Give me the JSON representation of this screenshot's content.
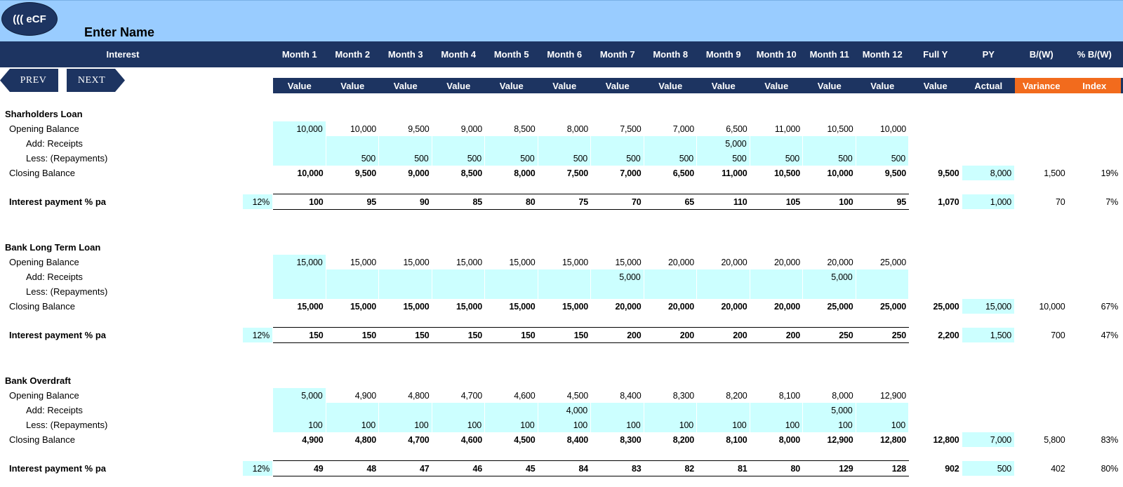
{
  "header": {
    "logo_text": "((( eCF",
    "company_name": "Enter Name",
    "section_label": "Interest",
    "columns": [
      "Month 1",
      "Month 2",
      "Month 3",
      "Month 4",
      "Month 5",
      "Month 6",
      "Month 7",
      "Month 8",
      "Month 9",
      "Month 10",
      "Month 11",
      "Month 12",
      "Full Y",
      "PY",
      "B/(W)",
      "% B/(W)"
    ],
    "subheaders": [
      "Value",
      "Value",
      "Value",
      "Value",
      "Value",
      "Value",
      "Value",
      "Value",
      "Value",
      "Value",
      "Value",
      "Value",
      "Value",
      "Actual",
      "Variance",
      "Index"
    ]
  },
  "nav": {
    "prev_label": "PREV",
    "next_label": "NEXT"
  },
  "colors": {
    "navy": "#1d3461",
    "light_blue": "#99ccff",
    "input_cyan": "#ccffff",
    "orange": "#f26b1d"
  },
  "sections": [
    {
      "title": "Sharholders Loan",
      "opening_label": "Opening Balance",
      "receipts_label": "Add: Receipts",
      "repayments_label": "Less: (Repayments)",
      "closing_label": "Closing Balance",
      "interest_label": "Interest payment % pa",
      "rate": "12%",
      "opening": [
        "10,000",
        "10,000",
        "9,500",
        "9,000",
        "8,500",
        "8,000",
        "7,500",
        "7,000",
        "6,500",
        "11,000",
        "10,500",
        "10,000"
      ],
      "receipts": [
        "",
        "",
        "",
        "",
        "",
        "",
        "",
        "",
        "5,000",
        "",
        "",
        ""
      ],
      "repayments": [
        "",
        "500",
        "500",
        "500",
        "500",
        "500",
        "500",
        "500",
        "500",
        "500",
        "500",
        "500"
      ],
      "closing": [
        "10,000",
        "9,500",
        "9,000",
        "8,500",
        "8,000",
        "7,500",
        "7,000",
        "6,500",
        "11,000",
        "10,500",
        "10,000",
        "9,500"
      ],
      "closing_full_y": "9,500",
      "closing_py": "8,000",
      "closing_var": "1,500",
      "closing_idx": "19%",
      "interest": [
        "100",
        "95",
        "90",
        "85",
        "80",
        "75",
        "70",
        "65",
        "110",
        "105",
        "100",
        "95"
      ],
      "interest_full_y": "1,070",
      "interest_py": "1,000",
      "interest_var": "70",
      "interest_idx": "7%"
    },
    {
      "title": "Bank Long Term Loan",
      "opening_label": "Opening Balance",
      "receipts_label": "Add: Receipts",
      "repayments_label": "Less: (Repayments)",
      "closing_label": "Closing Balance",
      "interest_label": "Interest payment % pa",
      "rate": "12%",
      "opening": [
        "15,000",
        "15,000",
        "15,000",
        "15,000",
        "15,000",
        "15,000",
        "15,000",
        "20,000",
        "20,000",
        "20,000",
        "20,000",
        "25,000"
      ],
      "receipts": [
        "",
        "",
        "",
        "",
        "",
        "",
        "5,000",
        "",
        "",
        "",
        "5,000",
        ""
      ],
      "repayments": [
        "",
        "",
        "",
        "",
        "",
        "",
        "",
        "",
        "",
        "",
        "",
        ""
      ],
      "closing": [
        "15,000",
        "15,000",
        "15,000",
        "15,000",
        "15,000",
        "15,000",
        "20,000",
        "20,000",
        "20,000",
        "20,000",
        "25,000",
        "25,000"
      ],
      "closing_full_y": "25,000",
      "closing_py": "15,000",
      "closing_var": "10,000",
      "closing_idx": "67%",
      "interest": [
        "150",
        "150",
        "150",
        "150",
        "150",
        "150",
        "200",
        "200",
        "200",
        "200",
        "250",
        "250"
      ],
      "interest_full_y": "2,200",
      "interest_py": "1,500",
      "interest_var": "700",
      "interest_idx": "47%"
    },
    {
      "title": "Bank Overdraft",
      "opening_label": "Opening Balance",
      "receipts_label": "Add: Receipts",
      "repayments_label": "Less: (Repayments)",
      "closing_label": "Closing Balance",
      "interest_label": "Interest payment % pa",
      "rate": "12%",
      "opening": [
        "5,000",
        "4,900",
        "4,800",
        "4,700",
        "4,600",
        "4,500",
        "8,400",
        "8,300",
        "8,200",
        "8,100",
        "8,000",
        "12,900"
      ],
      "receipts": [
        "",
        "",
        "",
        "",
        "",
        "4,000",
        "",
        "",
        "",
        "",
        "5,000",
        ""
      ],
      "repayments": [
        "100",
        "100",
        "100",
        "100",
        "100",
        "100",
        "100",
        "100",
        "100",
        "100",
        "100",
        "100"
      ],
      "closing": [
        "4,900",
        "4,800",
        "4,700",
        "4,600",
        "4,500",
        "8,400",
        "8,300",
        "8,200",
        "8,100",
        "8,000",
        "12,900",
        "12,800"
      ],
      "closing_full_y": "12,800",
      "closing_py": "7,000",
      "closing_var": "5,800",
      "closing_idx": "83%",
      "interest": [
        "49",
        "48",
        "47",
        "46",
        "45",
        "84",
        "83",
        "82",
        "81",
        "80",
        "129",
        "128"
      ],
      "interest_full_y": "902",
      "interest_py": "500",
      "interest_var": "402",
      "interest_idx": "80%"
    }
  ]
}
